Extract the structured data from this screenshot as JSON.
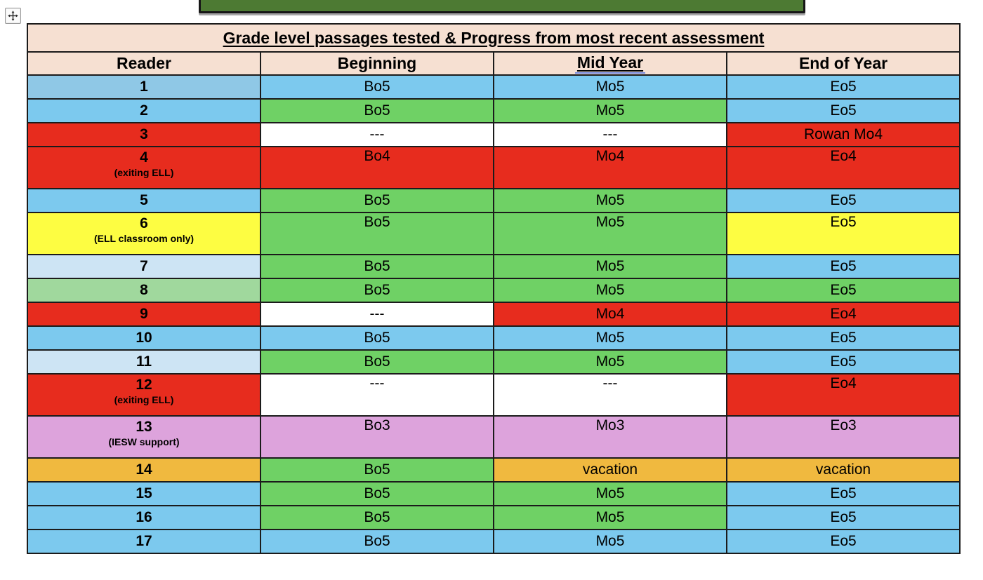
{
  "page": {
    "background": "#ffffff"
  },
  "icons": {
    "table_move_handle": "four-way-move-arrow-icon"
  },
  "top_shape": {
    "fill": "#4d7a33",
    "border": "#161616"
  },
  "table": {
    "title": "Grade level passages tested & Progress from most recent assessment",
    "columns": [
      {
        "label": "Reader"
      },
      {
        "label": "Beginning"
      },
      {
        "label": "Mid Year",
        "underlined": true
      },
      {
        "label": "End of Year"
      }
    ],
    "palette": {
      "header_bg": "#f6e0d2",
      "blue": "#7cc9ee",
      "blue_muted": "#8fc8e6",
      "light_blue": "#cde4f4",
      "green": "#6fd165",
      "light_green": "#a0d89d",
      "red": "#e72c1e",
      "yellow": "#fdfd42",
      "purple": "#dda3dc",
      "orange": "#f0b93f",
      "white": "#ffffff"
    },
    "rows": [
      {
        "reader": "1",
        "note": "",
        "reader_color": "blue_muted",
        "tall": false,
        "cells": [
          {
            "text": "Bo5",
            "color": "blue"
          },
          {
            "text": "Mo5",
            "color": "blue"
          },
          {
            "text": "Eo5",
            "color": "blue"
          }
        ]
      },
      {
        "reader": "2",
        "note": "",
        "reader_color": "blue",
        "tall": false,
        "cells": [
          {
            "text": "Bo5",
            "color": "green"
          },
          {
            "text": "Mo5",
            "color": "green"
          },
          {
            "text": "Eo5",
            "color": "blue"
          }
        ]
      },
      {
        "reader": "3",
        "note": "",
        "reader_color": "red",
        "tall": false,
        "cells": [
          {
            "text": "---",
            "color": "white"
          },
          {
            "text": "---",
            "color": "white"
          },
          {
            "text": "Rowan Mo4",
            "color": "red"
          }
        ]
      },
      {
        "reader": "4",
        "note": "(exiting ELL)",
        "reader_color": "red",
        "tall": true,
        "cells": [
          {
            "text": "Bo4",
            "color": "red"
          },
          {
            "text": "Mo4",
            "color": "red"
          },
          {
            "text": "Eo4",
            "color": "red"
          }
        ]
      },
      {
        "reader": "5",
        "note": "",
        "reader_color": "blue",
        "tall": false,
        "cells": [
          {
            "text": "Bo5",
            "color": "green"
          },
          {
            "text": "Mo5",
            "color": "green"
          },
          {
            "text": "Eo5",
            "color": "blue"
          }
        ]
      },
      {
        "reader": "6",
        "note": "(ELL classroom only)",
        "reader_color": "yellow",
        "tall": true,
        "cells": [
          {
            "text": "Bo5",
            "color": "green"
          },
          {
            "text": "Mo5",
            "color": "green"
          },
          {
            "text": "Eo5",
            "color": "yellow"
          }
        ]
      },
      {
        "reader": "7",
        "note": "",
        "reader_color": "light_blue",
        "tall": false,
        "cells": [
          {
            "text": "Bo5",
            "color": "green"
          },
          {
            "text": "Mo5",
            "color": "green"
          },
          {
            "text": "Eo5",
            "color": "blue"
          }
        ]
      },
      {
        "reader": "8",
        "note": "",
        "reader_color": "light_green",
        "tall": false,
        "cells": [
          {
            "text": "Bo5",
            "color": "green"
          },
          {
            "text": "Mo5",
            "color": "green"
          },
          {
            "text": "Eo5",
            "color": "green"
          }
        ]
      },
      {
        "reader": "9",
        "note": "",
        "reader_color": "red",
        "tall": false,
        "cells": [
          {
            "text": "---",
            "color": "white"
          },
          {
            "text": "Mo4",
            "color": "red"
          },
          {
            "text": "Eo4",
            "color": "red"
          }
        ]
      },
      {
        "reader": "10",
        "note": "",
        "reader_color": "blue",
        "tall": false,
        "cells": [
          {
            "text": "Bo5",
            "color": "blue"
          },
          {
            "text": "Mo5",
            "color": "blue"
          },
          {
            "text": "Eo5",
            "color": "blue"
          }
        ]
      },
      {
        "reader": "11",
        "note": "",
        "reader_color": "light_blue",
        "tall": false,
        "cells": [
          {
            "text": "Bo5",
            "color": "green"
          },
          {
            "text": "Mo5",
            "color": "green"
          },
          {
            "text": "Eo5",
            "color": "blue"
          }
        ]
      },
      {
        "reader": "12",
        "note": "(exiting ELL)",
        "reader_color": "red",
        "tall": true,
        "cells": [
          {
            "text": "---",
            "color": "white"
          },
          {
            "text": "---",
            "color": "white"
          },
          {
            "text": "Eo4",
            "color": "red"
          }
        ]
      },
      {
        "reader": "13",
        "note": "(IESW support)",
        "reader_color": "purple",
        "tall": true,
        "cells": [
          {
            "text": "Bo3",
            "color": "purple"
          },
          {
            "text": "Mo3",
            "color": "purple"
          },
          {
            "text": "Eo3",
            "color": "purple"
          }
        ]
      },
      {
        "reader": "14",
        "note": "",
        "reader_color": "orange",
        "tall": false,
        "cells": [
          {
            "text": "Bo5",
            "color": "green"
          },
          {
            "text": "vacation",
            "color": "orange"
          },
          {
            "text": "vacation",
            "color": "orange"
          }
        ]
      },
      {
        "reader": "15",
        "note": "",
        "reader_color": "blue",
        "tall": false,
        "cells": [
          {
            "text": "Bo5",
            "color": "green"
          },
          {
            "text": "Mo5",
            "color": "green"
          },
          {
            "text": "Eo5",
            "color": "blue"
          }
        ]
      },
      {
        "reader": "16",
        "note": "",
        "reader_color": "blue",
        "tall": false,
        "cells": [
          {
            "text": "Bo5",
            "color": "green"
          },
          {
            "text": "Mo5",
            "color": "green"
          },
          {
            "text": "Eo5",
            "color": "blue"
          }
        ]
      },
      {
        "reader": "17",
        "note": "",
        "reader_color": "blue",
        "tall": false,
        "cells": [
          {
            "text": "Bo5",
            "color": "blue"
          },
          {
            "text": "Mo5",
            "color": "blue"
          },
          {
            "text": "Eo5",
            "color": "blue"
          }
        ]
      }
    ]
  }
}
